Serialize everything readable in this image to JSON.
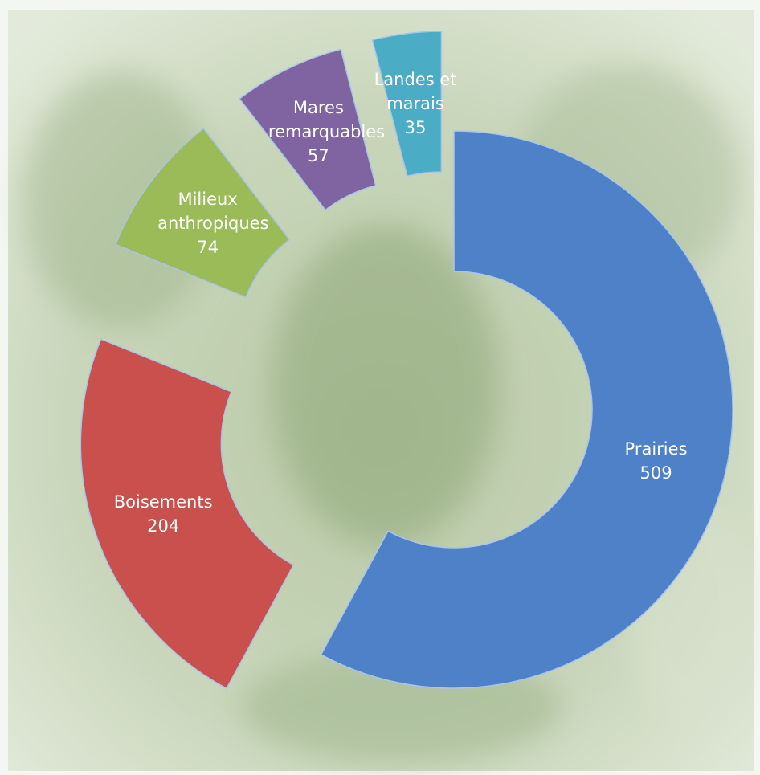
{
  "chart_data": {
    "type": "donut",
    "categories": [
      "Prairies",
      "Boisements",
      "Milieux anthropiques",
      "Mares remarquables",
      "Landes et marais"
    ],
    "values": [
      509,
      204,
      74,
      57,
      35
    ],
    "colors": [
      "#4f81c8",
      "#c9504c",
      "#9bbb59",
      "#8064a2",
      "#4bacc6"
    ]
  }
}
